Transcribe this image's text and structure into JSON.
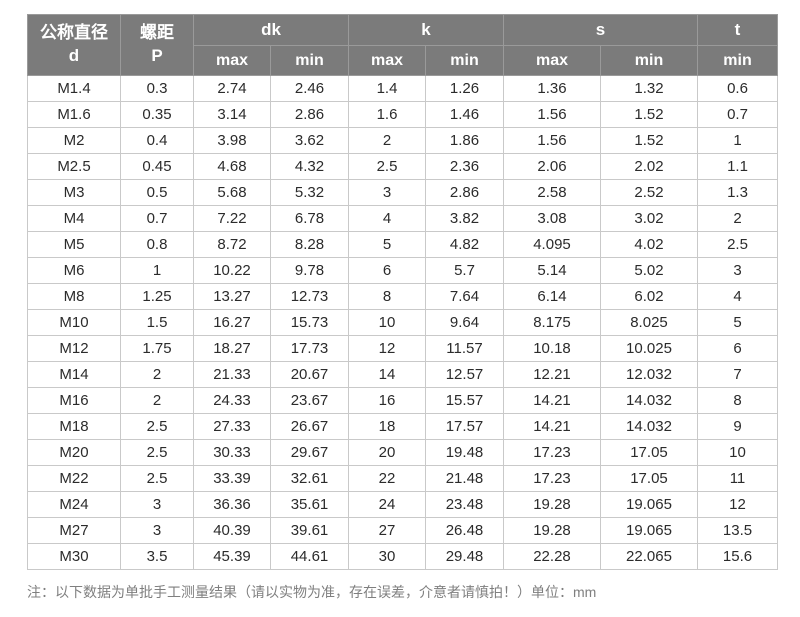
{
  "chart_data": {
    "type": "table",
    "header": {
      "d": {
        "line1": "公称直径",
        "line2": "d"
      },
      "p": {
        "line1": "螺距",
        "line2": "P"
      },
      "groups": [
        {
          "label": "dk",
          "subs": [
            "max",
            "min"
          ]
        },
        {
          "label": "k",
          "subs": [
            "max",
            "min"
          ]
        },
        {
          "label": "s",
          "subs": [
            "max",
            "min"
          ]
        },
        {
          "label": "t",
          "subs": [
            "min"
          ]
        }
      ]
    },
    "rows": [
      [
        "M1.4",
        "0.3",
        "2.74",
        "2.46",
        "1.4",
        "1.26",
        "1.36",
        "1.32",
        "0.6"
      ],
      [
        "M1.6",
        "0.35",
        "3.14",
        "2.86",
        "1.6",
        "1.46",
        "1.56",
        "1.52",
        "0.7"
      ],
      [
        "M2",
        "0.4",
        "3.98",
        "3.62",
        "2",
        "1.86",
        "1.56",
        "1.52",
        "1"
      ],
      [
        "M2.5",
        "0.45",
        "4.68",
        "4.32",
        "2.5",
        "2.36",
        "2.06",
        "2.02",
        "1.1"
      ],
      [
        "M3",
        "0.5",
        "5.68",
        "5.32",
        "3",
        "2.86",
        "2.58",
        "2.52",
        "1.3"
      ],
      [
        "M4",
        "0.7",
        "7.22",
        "6.78",
        "4",
        "3.82",
        "3.08",
        "3.02",
        "2"
      ],
      [
        "M5",
        "0.8",
        "8.72",
        "8.28",
        "5",
        "4.82",
        "4.095",
        "4.02",
        "2.5"
      ],
      [
        "M6",
        "1",
        "10.22",
        "9.78",
        "6",
        "5.7",
        "5.14",
        "5.02",
        "3"
      ],
      [
        "M8",
        "1.25",
        "13.27",
        "12.73",
        "8",
        "7.64",
        "6.14",
        "6.02",
        "4"
      ],
      [
        "M10",
        "1.5",
        "16.27",
        "15.73",
        "10",
        "9.64",
        "8.175",
        "8.025",
        "5"
      ],
      [
        "M12",
        "1.75",
        "18.27",
        "17.73",
        "12",
        "11.57",
        "10.18",
        "10.025",
        "6"
      ],
      [
        "M14",
        "2",
        "21.33",
        "20.67",
        "14",
        "12.57",
        "12.21",
        "12.032",
        "7"
      ],
      [
        "M16",
        "2",
        "24.33",
        "23.67",
        "16",
        "15.57",
        "14.21",
        "14.032",
        "8"
      ],
      [
        "M18",
        "2.5",
        "27.33",
        "26.67",
        "18",
        "17.57",
        "14.21",
        "14.032",
        "9"
      ],
      [
        "M20",
        "2.5",
        "30.33",
        "29.67",
        "20",
        "19.48",
        "17.23",
        "17.05",
        "10"
      ],
      [
        "M22",
        "2.5",
        "33.39",
        "32.61",
        "22",
        "21.48",
        "17.23",
        "17.05",
        "11"
      ],
      [
        "M24",
        "3",
        "36.36",
        "35.61",
        "24",
        "23.48",
        "19.28",
        "19.065",
        "12"
      ],
      [
        "M27",
        "3",
        "40.39",
        "39.61",
        "27",
        "26.48",
        "19.28",
        "19.065",
        "13.5"
      ],
      [
        "M30",
        "3.5",
        "45.39",
        "44.61",
        "30",
        "29.48",
        "22.28",
        "22.065",
        "15.6"
      ]
    ],
    "layout": {
      "unit": "mm",
      "grid": "on"
    }
  },
  "note": "注：以下数据为单批手工测量结果（请以实物为准，存在误差，介意者请慎拍！）单位：mm",
  "colors": {
    "header_bg": "#7b7b7b",
    "header_text": "#ffffff",
    "header_divider": "#9a9a9a",
    "body_border": "#c9c9c9",
    "body_text": "#2b2b2b",
    "note_text": "#7f7f7f"
  }
}
